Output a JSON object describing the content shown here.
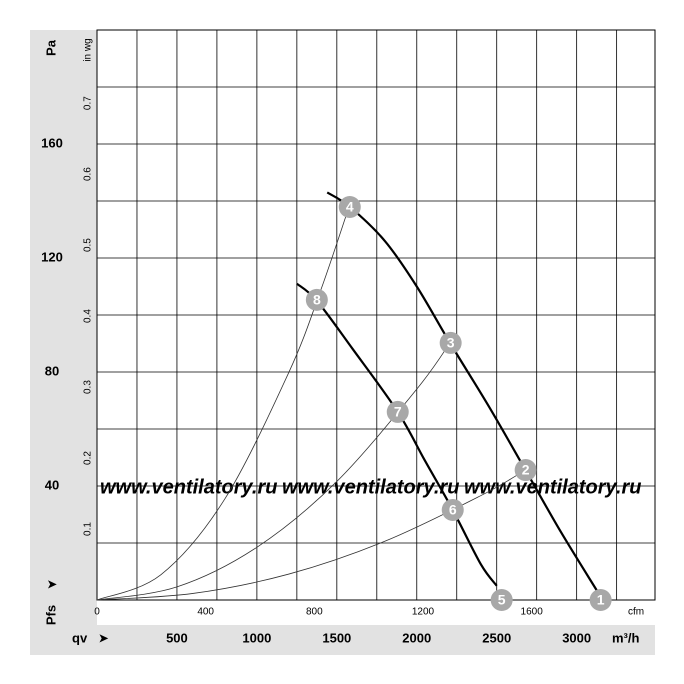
{
  "chart_data": {
    "type": "line",
    "xlabel": "m³/h",
    "xsymbol": "qv",
    "ylabel": "Pa",
    "ysymbol": "Pfs",
    "x2label": "cfm",
    "y2label": "in wg",
    "watermark": "www.ventilatory.ru",
    "xlim": [
      0,
      3490
    ],
    "xticks": [
      500,
      1000,
      1500,
      2000,
      2500,
      3000
    ],
    "xminor": [
      250,
      750,
      1250,
      1750,
      2250,
      2750,
      3250
    ],
    "ylim": [
      0,
      200
    ],
    "yticks": [
      40,
      80,
      120,
      160
    ],
    "yminor": [
      20,
      60,
      100,
      140,
      180
    ],
    "x2lim": [
      0,
      2054
    ],
    "x2ticks": [
      0,
      400,
      800,
      1200,
      1600
    ],
    "y2lim": [
      0,
      0.803
    ],
    "y2ticks": [
      0.1,
      0.2,
      0.3,
      0.4,
      0.5,
      0.6,
      0.7
    ],
    "grid": true,
    "series": [
      {
        "kind": "fan",
        "color": "#000000",
        "x": [
          1440,
          1580,
          1800,
          2000,
          2210,
          2450,
          2680,
          2900,
          3130
        ],
        "y": [
          143,
          138,
          126,
          110,
          90,
          68,
          45.6,
          24,
          3
        ]
      },
      {
        "kind": "fan",
        "color": "#000000",
        "x": [
          1250,
          1375,
          1600,
          1881,
          2050,
          2225,
          2400,
          2500
        ],
        "y": [
          111,
          105,
          88,
          66,
          49,
          31.6,
          12.6,
          5
        ]
      },
      {
        "kind": "system",
        "color": "#333333",
        "x": [
          0,
          400,
          800,
          1200,
          1400,
          1580
        ],
        "y": [
          0,
          8.9,
          35.5,
          79.9,
          108.8,
          138.6
        ]
      },
      {
        "kind": "system",
        "color": "#333333",
        "x": [
          0,
          500,
          1000,
          1500,
          2000,
          2210
        ],
        "y": [
          0,
          4.6,
          18.5,
          41.6,
          74,
          90.4
        ]
      },
      {
        "kind": "system",
        "color": "#333333",
        "x": [
          0,
          600,
          1200,
          1800,
          2400,
          2680
        ],
        "y": [
          0,
          2.3,
          9.1,
          20.6,
          36.6,
          45.6
        ]
      }
    ],
    "points": [
      {
        "label": "1",
        "x": 3150,
        "y": 0
      },
      {
        "label": "2",
        "x": 2681,
        "y": 45.6
      },
      {
        "label": "3",
        "x": 2212,
        "y": 90.2
      },
      {
        "label": "4",
        "x": 1581,
        "y": 137.9
      },
      {
        "label": "5",
        "x": 2531,
        "y": 0
      },
      {
        "label": "6",
        "x": 2225,
        "y": 31.6
      },
      {
        "label": "7",
        "x": 1881,
        "y": 66
      },
      {
        "label": "8",
        "x": 1375,
        "y": 105.3
      }
    ]
  }
}
